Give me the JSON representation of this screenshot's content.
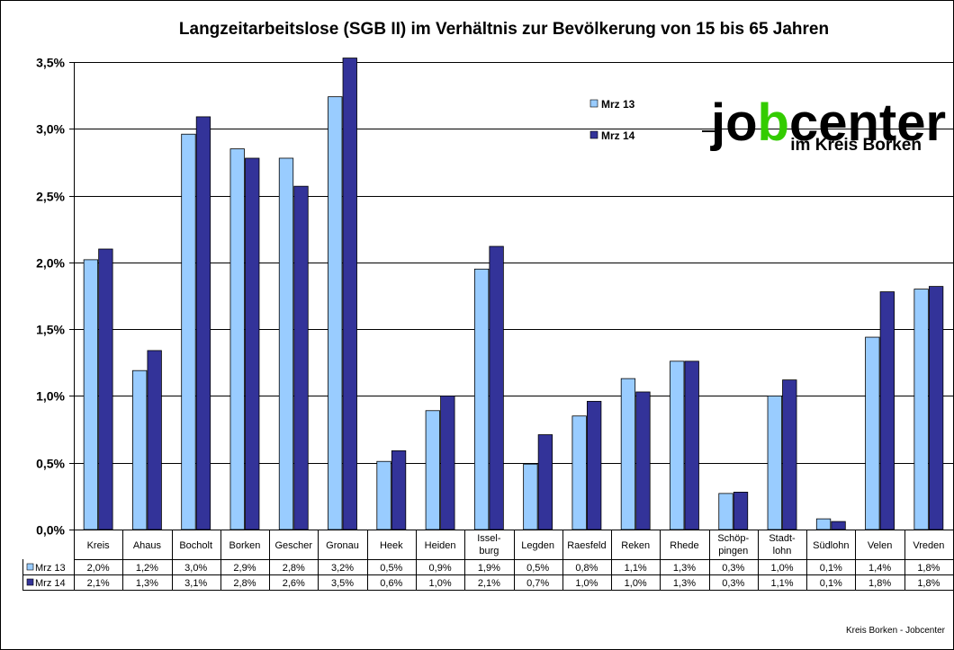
{
  "chart_data": {
    "type": "bar",
    "title": "Langzeitarbeitslose (SGB II) im Verhältnis zur Bevölkerung von 15 bis 65 Jahren",
    "categories": [
      [
        "Kreis"
      ],
      [
        "Ahaus"
      ],
      [
        "Bocholt"
      ],
      [
        "Borken"
      ],
      [
        "Gescher"
      ],
      [
        "Gronau"
      ],
      [
        "Heek"
      ],
      [
        "Heiden"
      ],
      [
        "Issel-",
        "burg"
      ],
      [
        "Legden"
      ],
      [
        "Raesfeld"
      ],
      [
        "Reken"
      ],
      [
        "Rhede"
      ],
      [
        "Schöp-",
        "pingen"
      ],
      [
        "Stadt-",
        "lohn"
      ],
      [
        "Südlohn"
      ],
      [
        "Velen"
      ],
      [
        "Vreden"
      ]
    ],
    "series": [
      {
        "name": "Mrz 13",
        "color": "#99ccff",
        "values": [
          2.02,
          1.19,
          2.96,
          2.85,
          2.78,
          3.24,
          0.51,
          0.89,
          1.95,
          0.49,
          0.85,
          1.13,
          1.26,
          0.27,
          1.0,
          0.08,
          1.44,
          1.8
        ],
        "labels": [
          "2,0%",
          "1,2%",
          "3,0%",
          "2,9%",
          "2,8%",
          "3,2%",
          "0,5%",
          "0,9%",
          "1,9%",
          "0,5%",
          "0,8%",
          "1,1%",
          "1,3%",
          "0,3%",
          "1,0%",
          "0,1%",
          "1,4%",
          "1,8%"
        ]
      },
      {
        "name": "Mrz 14",
        "color": "#333399",
        "values": [
          2.1,
          1.34,
          3.09,
          2.78,
          2.57,
          3.53,
          0.59,
          1.0,
          2.12,
          0.71,
          0.96,
          1.03,
          1.26,
          0.28,
          1.12,
          0.06,
          1.78,
          1.82
        ],
        "labels": [
          "2,1%",
          "1,3%",
          "3,1%",
          "2,8%",
          "2,6%",
          "3,5%",
          "0,6%",
          "1,0%",
          "2,1%",
          "0,7%",
          "1,0%",
          "1,0%",
          "1,3%",
          "0,3%",
          "1,1%",
          "0,1%",
          "1,8%",
          "1,8%"
        ]
      }
    ],
    "ylim": [
      0,
      3.5
    ],
    "yticks": [
      0,
      0.5,
      1.0,
      1.5,
      2.0,
      2.5,
      3.0,
      3.5
    ],
    "ytick_labels": [
      "0,0%",
      "0,5%",
      "1,0%",
      "1,5%",
      "2,0%",
      "2,5%",
      "3,0%",
      "3,5%"
    ],
    "grid": true,
    "legend_placement": "top-right",
    "data_table": true
  },
  "logo": {
    "main_left": "jo",
    "main_b": "b",
    "main_right": "center",
    "sub": "im Kreis Borken"
  },
  "credit": "Kreis Borken - Jobcenter"
}
